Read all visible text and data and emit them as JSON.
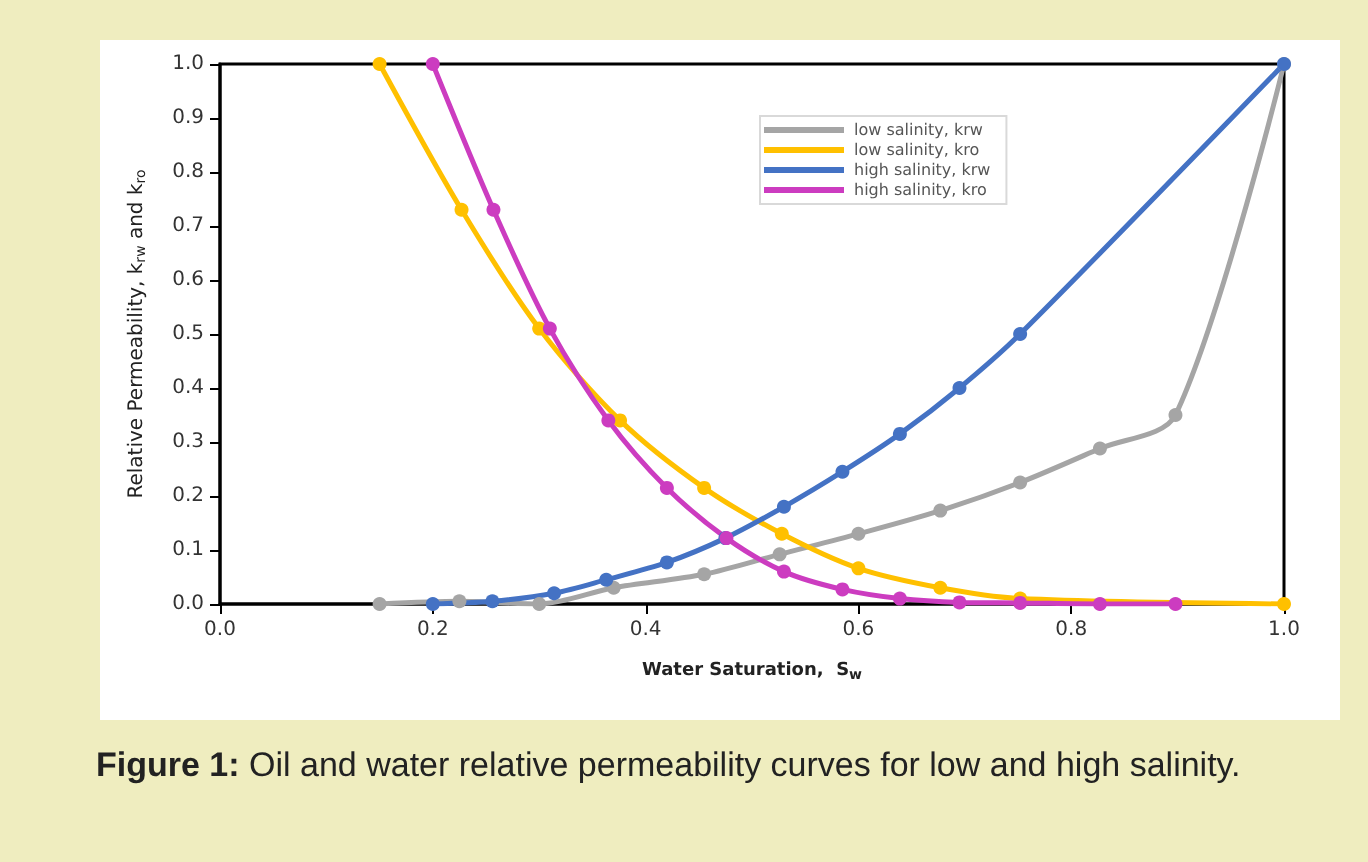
{
  "chart_data": {
    "type": "line",
    "xlabel": "Water Saturation,  S$_{w}$",
    "ylabel": "Relative Permeability, k$_{rw}$ and k$_{ro}$",
    "annotations": [
      "Figure 1: Oil and water relative permeability curves for low and high salinity."
    ],
    "series": [
      {
        "name": "low salinity, krw",
        "color": "#a5a5a5",
        "x": [
          0.15,
          0.225,
          0.3,
          0.37,
          0.455,
          0.526,
          0.6,
          0.677,
          0.752,
          0.827,
          0.898,
          1.0
        ],
        "values": [
          0,
          0.005,
          0.0,
          0.03,
          0.055,
          0.092,
          0.13,
          0.173,
          0.225,
          0.288,
          0.35,
          1.0
        ]
      },
      {
        "name": "low salinity, kro",
        "color": "#ffc000",
        "x": [
          0.15,
          0.227,
          0.3,
          0.376,
          0.455,
          0.528,
          0.6,
          0.677,
          0.752,
          1.0
        ],
        "values": [
          1.0,
          0.73,
          0.51,
          0.34,
          0.215,
          0.13,
          0.066,
          0.03,
          0.01,
          0
        ]
      },
      {
        "name": "high salinity, krw",
        "color": "#4472c4",
        "x": [
          0.2,
          0.256,
          0.314,
          0.363,
          0.42,
          0.475,
          0.53,
          0.585,
          0.639,
          0.695,
          0.752,
          1.0
        ],
        "values": [
          0,
          0.005,
          0.02,
          0.045,
          0.077,
          0.122,
          0.18,
          0.245,
          0.315,
          0.4,
          0.5,
          1.0
        ]
      },
      {
        "name": "high salinity, kro",
        "color": "#cc3cc0",
        "x": [
          0.2,
          0.257,
          0.31,
          0.365,
          0.42,
          0.476,
          0.53,
          0.585,
          0.639,
          0.695,
          0.752,
          0.827,
          0.898
        ],
        "values": [
          1.0,
          0.73,
          0.51,
          0.34,
          0.215,
          0.122,
          0.06,
          0.027,
          0.01,
          0.003,
          0.002,
          0,
          0
        ]
      }
    ],
    "xlim": [
      0,
      1.0
    ],
    "xticks": [
      {
        "value": 0,
        "label": "0.0"
      },
      {
        "value": 0.2,
        "label": "0.2"
      },
      {
        "value": 0.4,
        "label": "0.4"
      },
      {
        "value": 0.6,
        "label": "0.6"
      },
      {
        "value": 0.8,
        "label": "0.8"
      },
      {
        "value": 1.0,
        "label": "1.0"
      }
    ],
    "ylim": [
      0,
      1.0
    ],
    "yticks": [
      {
        "value": 0,
        "label": "0.0"
      },
      {
        "value": 0.1,
        "label": "0.1"
      },
      {
        "value": 0.2,
        "label": "0.2"
      },
      {
        "value": 0.3,
        "label": "0.3"
      },
      {
        "value": 0.4,
        "label": "0.4"
      },
      {
        "value": 0.5,
        "label": "0.5"
      },
      {
        "value": 0.6,
        "label": "0.6"
      },
      {
        "value": 0.7,
        "label": "0.7"
      },
      {
        "value": 0.8,
        "label": "0.8"
      },
      {
        "value": 0.9,
        "label": "0.9"
      },
      {
        "value": 1.0,
        "label": "1.0"
      }
    ],
    "grid": false,
    "legend": "top right",
    "marker": "circle",
    "line_style": "solid"
  }
}
